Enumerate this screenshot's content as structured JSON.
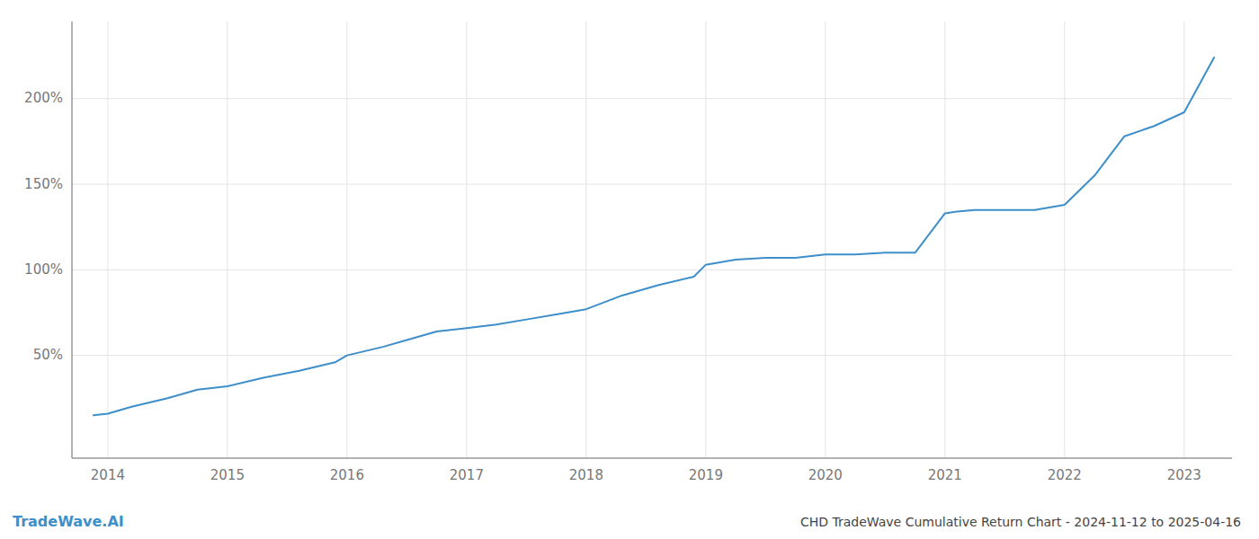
{
  "chart_data": {
    "type": "line",
    "title": "CHD TradeWave Cumulative Return Chart - 2024-11-12 to 2025-04-16",
    "annotations": [
      "TradeWave.AI"
    ],
    "x": [
      2013.88,
      2014.0,
      2014.2,
      2014.5,
      2014.75,
      2015.0,
      2015.3,
      2015.6,
      2015.9,
      2016.0,
      2016.3,
      2016.5,
      2016.75,
      2017.0,
      2017.25,
      2017.5,
      2017.75,
      2018.0,
      2018.3,
      2018.6,
      2018.9,
      2019.0,
      2019.25,
      2019.5,
      2019.75,
      2020.0,
      2020.25,
      2020.5,
      2020.75,
      2021.0,
      2021.1,
      2021.25,
      2021.5,
      2021.75,
      2022.0,
      2022.25,
      2022.5,
      2022.75,
      2023.0,
      2023.25
    ],
    "values": [
      15,
      16,
      20,
      25,
      30,
      32,
      37,
      41,
      46,
      50,
      55,
      59,
      64,
      66,
      68,
      71,
      74,
      77,
      85,
      91,
      96,
      103,
      106,
      107,
      107,
      109,
      109,
      110,
      110,
      133,
      134,
      135,
      135,
      135,
      138,
      155,
      178,
      184,
      192,
      224
    ],
    "color": "#3d8ec9",
    "xlim": [
      2013.7,
      2023.4
    ],
    "xticks": [
      2014,
      2015,
      2016,
      2017,
      2018,
      2019,
      2020,
      2021,
      2022,
      2023
    ],
    "ylim": [
      -10,
      245
    ],
    "yticks": [
      {
        "value": 50,
        "label": "50%"
      },
      {
        "value": 100,
        "label": "100%"
      },
      {
        "value": 150,
        "label": "150%"
      },
      {
        "value": 200,
        "label": "200%"
      }
    ],
    "grid": true
  }
}
